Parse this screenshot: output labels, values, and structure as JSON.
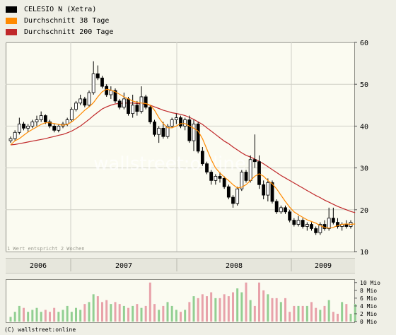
{
  "legend": [
    {
      "label": "CELESIO N (Xetra)",
      "color": "#000000"
    },
    {
      "label": "Durchschnitt 38 Tage",
      "color": "#ff8a00"
    },
    {
      "label": "Durchschnitt 200 Tage",
      "color": "#c0282a"
    }
  ],
  "colors": {
    "up": "#ffffff",
    "down": "#000000",
    "ma38": "#ff8a00",
    "ma200": "#c0282a",
    "vol_up": "#92cf92",
    "vol_down": "#e8a2aa",
    "grid": "#cfcfc6"
  },
  "watermark": "wallstreet:online",
  "note": "1 Wert entspricht 2 Wochen",
  "footer": "(C) wallstreet:online",
  "chart_data": [
    {
      "type": "candlestick",
      "title": "CELESIO N (Xetra)",
      "x_tick_labels": [
        "2006",
        "2007",
        "2008",
        "2009"
      ],
      "y_ticks": [
        10,
        20,
        30,
        40,
        50,
        60
      ],
      "ylim": [
        10,
        60
      ],
      "y_axis_side": "right",
      "grid": true,
      "legend_position": "top-left",
      "candles": [
        {
          "o": 36.5,
          "h": 37.5,
          "l": 36.0,
          "c": 37.0
        },
        {
          "o": 37.0,
          "h": 39.0,
          "l": 36.5,
          "c": 38.5
        },
        {
          "o": 38.5,
          "h": 42.0,
          "l": 38.0,
          "c": 40.5
        },
        {
          "o": 40.5,
          "h": 41.0,
          "l": 39.0,
          "c": 39.5
        },
        {
          "o": 39.5,
          "h": 40.5,
          "l": 38.5,
          "c": 40.0
        },
        {
          "o": 40.0,
          "h": 41.5,
          "l": 39.5,
          "c": 41.0
        },
        {
          "o": 41.0,
          "h": 42.5,
          "l": 40.0,
          "c": 41.5
        },
        {
          "o": 41.5,
          "h": 43.5,
          "l": 41.0,
          "c": 42.5
        },
        {
          "o": 42.5,
          "h": 42.8,
          "l": 40.5,
          "c": 41.0
        },
        {
          "o": 41.0,
          "h": 41.5,
          "l": 39.5,
          "c": 40.0
        },
        {
          "o": 40.0,
          "h": 40.5,
          "l": 38.5,
          "c": 39.0
        },
        {
          "o": 39.0,
          "h": 40.5,
          "l": 38.5,
          "c": 40.0
        },
        {
          "o": 40.0,
          "h": 41.0,
          "l": 39.5,
          "c": 40.5
        },
        {
          "o": 40.5,
          "h": 42.0,
          "l": 40.0,
          "c": 41.5
        },
        {
          "o": 41.5,
          "h": 44.5,
          "l": 41.0,
          "c": 44.0
        },
        {
          "o": 44.0,
          "h": 46.0,
          "l": 43.5,
          "c": 45.5
        },
        {
          "o": 45.5,
          "h": 47.5,
          "l": 45.0,
          "c": 46.5
        },
        {
          "o": 46.5,
          "h": 47.0,
          "l": 44.5,
          "c": 45.0
        },
        {
          "o": 45.0,
          "h": 48.5,
          "l": 44.5,
          "c": 48.0
        },
        {
          "o": 48.0,
          "h": 55.5,
          "l": 47.5,
          "c": 52.5
        },
        {
          "o": 52.5,
          "h": 54.5,
          "l": 51.0,
          "c": 51.5
        },
        {
          "o": 51.5,
          "h": 52.0,
          "l": 49.0,
          "c": 49.5
        },
        {
          "o": 49.5,
          "h": 50.0,
          "l": 47.0,
          "c": 47.5
        },
        {
          "o": 47.5,
          "h": 49.5,
          "l": 46.5,
          "c": 48.5
        },
        {
          "o": 48.5,
          "h": 49.0,
          "l": 45.5,
          "c": 46.0
        },
        {
          "o": 46.0,
          "h": 46.5,
          "l": 44.0,
          "c": 44.5
        },
        {
          "o": 44.5,
          "h": 48.0,
          "l": 44.0,
          "c": 46.5
        },
        {
          "o": 46.5,
          "h": 47.0,
          "l": 42.5,
          "c": 43.0
        },
        {
          "o": 43.0,
          "h": 47.5,
          "l": 42.0,
          "c": 45.0
        },
        {
          "o": 45.0,
          "h": 46.0,
          "l": 42.5,
          "c": 43.5
        },
        {
          "o": 43.5,
          "h": 49.5,
          "l": 43.0,
          "c": 47.0
        },
        {
          "o": 47.0,
          "h": 47.5,
          "l": 44.0,
          "c": 44.5
        },
        {
          "o": 44.5,
          "h": 45.0,
          "l": 40.5,
          "c": 41.0
        },
        {
          "o": 41.0,
          "h": 41.5,
          "l": 37.5,
          "c": 38.0
        },
        {
          "o": 38.0,
          "h": 40.0,
          "l": 36.0,
          "c": 39.5
        },
        {
          "o": 39.5,
          "h": 41.0,
          "l": 37.0,
          "c": 37.5
        },
        {
          "o": 37.5,
          "h": 40.5,
          "l": 37.0,
          "c": 40.0
        },
        {
          "o": 40.0,
          "h": 42.0,
          "l": 39.5,
          "c": 41.5
        },
        {
          "o": 41.5,
          "h": 43.0,
          "l": 40.5,
          "c": 42.0
        },
        {
          "o": 42.0,
          "h": 42.5,
          "l": 39.5,
          "c": 40.0
        },
        {
          "o": 40.0,
          "h": 42.0,
          "l": 39.0,
          "c": 41.5
        },
        {
          "o": 41.5,
          "h": 42.5,
          "l": 36.0,
          "c": 36.5
        },
        {
          "o": 36.5,
          "h": 41.5,
          "l": 34.0,
          "c": 40.5
        },
        {
          "o": 40.5,
          "h": 41.0,
          "l": 33.5,
          "c": 34.0
        },
        {
          "o": 34.0,
          "h": 35.0,
          "l": 30.5,
          "c": 31.0
        },
        {
          "o": 31.0,
          "h": 31.5,
          "l": 28.5,
          "c": 29.0
        },
        {
          "o": 29.0,
          "h": 29.5,
          "l": 26.0,
          "c": 27.0
        },
        {
          "o": 27.0,
          "h": 28.5,
          "l": 26.0,
          "c": 28.0
        },
        {
          "o": 28.0,
          "h": 29.0,
          "l": 26.5,
          "c": 27.5
        },
        {
          "o": 27.5,
          "h": 28.0,
          "l": 25.0,
          "c": 25.5
        },
        {
          "o": 25.5,
          "h": 26.0,
          "l": 22.5,
          "c": 23.0
        },
        {
          "o": 23.0,
          "h": 23.5,
          "l": 20.5,
          "c": 21.5
        },
        {
          "o": 21.5,
          "h": 25.5,
          "l": 21.0,
          "c": 25.0
        },
        {
          "o": 25.0,
          "h": 29.5,
          "l": 24.5,
          "c": 29.0
        },
        {
          "o": 29.0,
          "h": 29.5,
          "l": 26.5,
          "c": 27.0
        },
        {
          "o": 27.0,
          "h": 33.0,
          "l": 26.5,
          "c": 32.0
        },
        {
          "o": 32.0,
          "h": 38.0,
          "l": 30.0,
          "c": 31.5
        },
        {
          "o": 31.5,
          "h": 33.0,
          "l": 25.0,
          "c": 26.0
        },
        {
          "o": 26.0,
          "h": 27.0,
          "l": 22.5,
          "c": 23.5
        },
        {
          "o": 23.5,
          "h": 27.5,
          "l": 22.0,
          "c": 26.5
        },
        {
          "o": 26.5,
          "h": 27.0,
          "l": 21.5,
          "c": 22.0
        },
        {
          "o": 22.0,
          "h": 22.5,
          "l": 19.0,
          "c": 19.5
        },
        {
          "o": 19.5,
          "h": 21.0,
          "l": 19.0,
          "c": 20.5
        },
        {
          "o": 20.5,
          "h": 21.0,
          "l": 19.0,
          "c": 19.5
        },
        {
          "o": 19.5,
          "h": 20.0,
          "l": 17.0,
          "c": 17.5
        },
        {
          "o": 17.5,
          "h": 18.0,
          "l": 16.0,
          "c": 16.5
        },
        {
          "o": 16.5,
          "h": 18.5,
          "l": 16.0,
          "c": 17.5
        },
        {
          "o": 17.5,
          "h": 18.0,
          "l": 15.5,
          "c": 16.0
        },
        {
          "o": 16.0,
          "h": 17.0,
          "l": 15.0,
          "c": 16.5
        },
        {
          "o": 16.5,
          "h": 17.0,
          "l": 15.0,
          "c": 15.5
        },
        {
          "o": 15.5,
          "h": 16.0,
          "l": 14.0,
          "c": 14.5
        },
        {
          "o": 14.5,
          "h": 17.0,
          "l": 14.0,
          "c": 16.5
        },
        {
          "o": 16.5,
          "h": 17.5,
          "l": 15.0,
          "c": 15.5
        },
        {
          "o": 15.5,
          "h": 20.5,
          "l": 15.0,
          "c": 18.0
        },
        {
          "o": 18.0,
          "h": 20.5,
          "l": 16.5,
          "c": 17.0
        },
        {
          "o": 17.0,
          "h": 18.0,
          "l": 15.5,
          "c": 16.0
        },
        {
          "o": 16.0,
          "h": 17.0,
          "l": 15.0,
          "c": 16.5
        },
        {
          "o": 16.5,
          "h": 17.5,
          "l": 15.5,
          "c": 16.0
        },
        {
          "o": 16.0,
          "h": 17.5,
          "l": 15.5,
          "c": 17.0
        }
      ],
      "series": [
        {
          "name": "Durchschnitt 38 Tage",
          "values": [
            35.5,
            36.5,
            37.0,
            37.8,
            38.6,
            39.2,
            39.8,
            40.4,
            40.8,
            40.8,
            40.6,
            40.4,
            40.2,
            40.4,
            41.0,
            41.8,
            42.8,
            43.8,
            44.6,
            45.6,
            47.0,
            48.2,
            48.8,
            48.6,
            48.2,
            47.6,
            47.0,
            46.5,
            46.0,
            45.7,
            45.5,
            45.4,
            45.0,
            43.8,
            42.0,
            40.6,
            39.6,
            39.6,
            40.0,
            40.6,
            40.6,
            40.0,
            39.5,
            38.8,
            37.0,
            34.5,
            32.0,
            30.0,
            28.8,
            27.8,
            27.0,
            26.0,
            25.2,
            25.4,
            26.0,
            27.0,
            28.0,
            28.6,
            28.0,
            27.0,
            26.2,
            25.0,
            23.5,
            22.0,
            20.6,
            19.5,
            18.8,
            18.2,
            17.6,
            17.2,
            16.8,
            16.2,
            15.8,
            15.6,
            15.8,
            16.2,
            16.5,
            16.6,
            16.5,
            16.6
          ]
        },
        {
          "name": "Durchschnitt 200 Tage",
          "values": [
            35.5,
            35.6,
            35.8,
            36.0,
            36.2,
            36.4,
            36.6,
            36.8,
            37.0,
            37.3,
            37.5,
            37.8,
            38.0,
            38.4,
            38.8,
            39.4,
            40.0,
            40.8,
            41.6,
            42.5,
            43.3,
            44.1,
            44.6,
            45.0,
            45.3,
            45.4,
            45.5,
            45.5,
            45.5,
            45.4,
            45.3,
            45.2,
            45.0,
            44.6,
            44.2,
            43.8,
            43.5,
            43.2,
            43.0,
            42.8,
            42.5,
            42.1,
            41.6,
            41.0,
            40.4,
            39.6,
            38.8,
            38.0,
            37.2,
            36.4,
            35.8,
            35.0,
            34.3,
            33.6,
            33.0,
            32.6,
            32.1,
            31.6,
            31.0,
            30.3,
            29.6,
            28.9,
            28.2,
            27.6,
            27.0,
            26.4,
            25.8,
            25.2,
            24.6,
            24.0,
            23.4,
            22.9,
            22.3,
            21.8,
            21.3,
            20.8,
            20.4,
            20.0,
            19.6,
            19.3
          ]
        }
      ]
    },
    {
      "type": "bar",
      "title": "",
      "y_tick_labels": [
        "0 Mio",
        "2 Mio",
        "4 Mio",
        "6 Mio",
        "8 Mio",
        "10 Mio"
      ],
      "ylim": [
        0,
        10.5
      ],
      "y_axis_side": "right",
      "series": [
        {
          "values": [
            1.2,
            2.5,
            4.0,
            3.5,
            2.5,
            3.0,
            3.5,
            2.5,
            3.0,
            2.5,
            3.5,
            2.5,
            3.0,
            4.0,
            2.5,
            3.5,
            3.0,
            4.5,
            5.0,
            7.0,
            6.5,
            5.0,
            5.5,
            4.5,
            5.0,
            4.5,
            4.0,
            3.5,
            4.0,
            4.5,
            3.5,
            4.0,
            10.0,
            4.5,
            3.0,
            4.0,
            5.0,
            4.0,
            3.0,
            2.5,
            3.0,
            5.0,
            6.5,
            6.0,
            7.0,
            6.5,
            7.5,
            6.0,
            6.0,
            7.0,
            6.5,
            7.5,
            8.5,
            7.5,
            10.0,
            5.5,
            4.0,
            10.0,
            8.0,
            7.0,
            6.0,
            6.0,
            5.0,
            6.0,
            2.5,
            4.0,
            4.0,
            4.0,
            4.0,
            5.0,
            3.5,
            3.0,
            4.0,
            5.5,
            2.5,
            2.0,
            5.0,
            4.5,
            2.0,
            4.5
          ]
        }
      ]
    }
  ]
}
